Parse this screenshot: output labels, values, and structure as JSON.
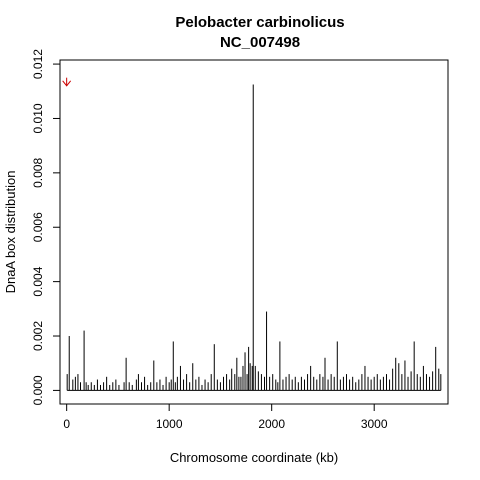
{
  "chart_data": {
    "type": "bar",
    "title": "Pelobacter carbinolicus",
    "subtitle": "NC_007498",
    "xlabel": "Chromosome coordinate (kb)",
    "ylabel": "DnaA box distribution",
    "xlim": [
      -65,
      3720
    ],
    "ylim": [
      -0.0005,
      0.01215
    ],
    "x_ticks": [
      0,
      1000,
      2000,
      3000
    ],
    "y_ticks": [
      0.0,
      0.002,
      0.004,
      0.006,
      0.008,
      0.01,
      0.012
    ],
    "y_tick_labels": [
      "0.000",
      "0.002",
      "0.004",
      "0.006",
      "0.008",
      "0.010",
      "0.012"
    ],
    "grid": false,
    "marker": {
      "x": 0,
      "y_top": 0.0115,
      "y_bottom": 0.0112,
      "color": "#cc0000",
      "icon": "arrow-down-icon"
    },
    "bar_color": "#000000",
    "series": [
      {
        "x": [
          5,
          25,
          60,
          85,
          110,
          135,
          170,
          190,
          210,
          240,
          270,
          300,
          330,
          360,
          390,
          420,
          450,
          480,
          510,
          560,
          580,
          610,
          640,
          680,
          700,
          730,
          760,
          790,
          820,
          850,
          880,
          910,
          940,
          970,
          1000,
          1020,
          1040,
          1060,
          1080,
          1110,
          1140,
          1170,
          1200,
          1230,
          1260,
          1290,
          1320,
          1350,
          1380,
          1410,
          1440,
          1470,
          1500,
          1530,
          1560,
          1590,
          1610,
          1640,
          1660,
          1680,
          1700,
          1720,
          1740,
          1760,
          1775,
          1790,
          1810,
          1820,
          1840,
          1870,
          1900,
          1930,
          1950,
          1980,
          2010,
          2040,
          2060,
          2080,
          2110,
          2140,
          2170,
          2200,
          2230,
          2260,
          2290,
          2320,
          2350,
          2380,
          2410,
          2440,
          2470,
          2500,
          2520,
          2550,
          2580,
          2610,
          2640,
          2670,
          2700,
          2730,
          2760,
          2790,
          2820,
          2850,
          2880,
          2910,
          2940,
          2970,
          3000,
          3030,
          3060,
          3090,
          3120,
          3150,
          3180,
          3210,
          3240,
          3270,
          3300,
          3330,
          3360,
          3390,
          3420,
          3450,
          3480,
          3510,
          3540,
          3570,
          3600,
          3630,
          3650
        ],
        "values": [
          0.0006,
          0.002,
          0.0004,
          0.0005,
          0.0006,
          0.0003,
          0.0022,
          0.0003,
          0.0002,
          0.0003,
          0.0002,
          0.0004,
          0.0002,
          0.0003,
          0.0005,
          0.0002,
          0.0003,
          0.0004,
          0.0002,
          0.0003,
          0.0012,
          0.0003,
          0.0002,
          0.0004,
          0.0006,
          0.0003,
          0.0005,
          0.0002,
          0.0003,
          0.0011,
          0.0003,
          0.0004,
          0.0002,
          0.0005,
          0.0003,
          0.0004,
          0.0018,
          0.0003,
          0.0005,
          0.0009,
          0.0004,
          0.0006,
          0.0003,
          0.001,
          0.0004,
          0.0005,
          0.0002,
          0.0004,
          0.0003,
          0.0006,
          0.0017,
          0.0004,
          0.0003,
          0.0005,
          0.0006,
          0.0004,
          0.0008,
          0.0006,
          0.0012,
          0.0005,
          0.0005,
          0.0009,
          0.0014,
          0.0006,
          0.0016,
          0.001,
          0.0009,
          0.01125,
          0.0009,
          0.0007,
          0.0006,
          0.0005,
          0.0029,
          0.0005,
          0.0006,
          0.0004,
          0.0003,
          0.0018,
          0.0004,
          0.0005,
          0.0006,
          0.0004,
          0.0005,
          0.0003,
          0.0005,
          0.0004,
          0.0006,
          0.0009,
          0.0005,
          0.0004,
          0.0006,
          0.0005,
          0.0012,
          0.0004,
          0.0006,
          0.0005,
          0.0018,
          0.0004,
          0.0005,
          0.0006,
          0.0004,
          0.0005,
          0.0003,
          0.0004,
          0.0006,
          0.0009,
          0.0005,
          0.0004,
          0.0005,
          0.0006,
          0.0004,
          0.0005,
          0.0006,
          0.0004,
          0.0008,
          0.0012,
          0.001,
          0.0006,
          0.0011,
          0.0005,
          0.0007,
          0.0018,
          0.0006,
          0.0005,
          0.0009,
          0.0006,
          0.0005,
          0.0007,
          0.0016,
          0.0008,
          0.0006
        ]
      }
    ]
  }
}
